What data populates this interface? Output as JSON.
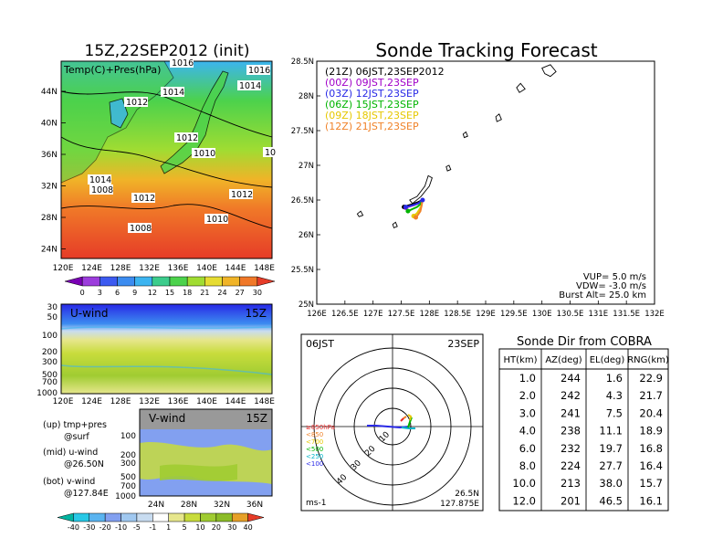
{
  "map_panel": {
    "title": "15Z,22SEP2012 (init)",
    "legend": "Temp(C)+Pres(hPa)",
    "lat_labels": [
      "44N",
      "40N",
      "36N",
      "32N",
      "28N",
      "24N"
    ],
    "lon_labels": [
      "120E",
      "124E",
      "128E",
      "132E",
      "136E",
      "140E",
      "144E",
      "148E"
    ],
    "pressure_labels": [
      "1016",
      "1016",
      "1014",
      "1014",
      "1012",
      "1012",
      "1010",
      "1008",
      "1012",
      "1012",
      "1010",
      "1008",
      "10",
      "1014"
    ],
    "colorbar_ticks": [
      "0",
      "3",
      "6",
      "9",
      "12",
      "15",
      "18",
      "21",
      "24",
      "27",
      "30"
    ],
    "colorbar_colors": [
      "#7a00b4",
      "#9c3cdc",
      "#3c5af0",
      "#3c8cf0",
      "#3cb4f0",
      "#3ccc8c",
      "#4cd24c",
      "#a0dc32",
      "#e6dc32",
      "#f0b428",
      "#f07828",
      "#e63c28"
    ]
  },
  "u_panel": {
    "label": "U-wind",
    "time": "15Z",
    "y_labels": [
      "30",
      "50",
      "100",
      "200",
      "300",
      "500",
      "700",
      "1000"
    ],
    "x_labels": [
      "120E",
      "124E",
      "128E",
      "132E",
      "136E",
      "140E",
      "144E",
      "148E"
    ]
  },
  "v_panel": {
    "label": "V-wind",
    "time": "15Z",
    "y_labels": [
      "100",
      "200",
      "300",
      "500",
      "700",
      "1000"
    ],
    "x_labels": [
      "24N",
      "28N",
      "32N",
      "36N"
    ]
  },
  "notes": {
    "up": "(up) tmp+pres",
    "up_sub": "@surf",
    "mid": "(mid) u-wind",
    "mid_sub": "@26.50N",
    "bot": "(bot) v-wind",
    "bot_sub": "@127.84E"
  },
  "wind_colorbar": {
    "ticks": [
      "-40",
      "-30",
      "-20",
      "-10",
      "-5",
      "-1",
      "1",
      "5",
      "10",
      "20",
      "30",
      "40"
    ],
    "colors": [
      "#00b4a0",
      "#28c8e6",
      "#5ab4f0",
      "#82a0f0",
      "#a0c8f0",
      "#c8dcf0",
      "#ffffff",
      "#e6e68c",
      "#c8dc3c",
      "#a0cc32",
      "#8cbc28",
      "#e6a028",
      "#e63c28"
    ]
  },
  "track_panel": {
    "title": "Sonde Tracking Forecast",
    "lat_labels": [
      "28.5N",
      "28N",
      "27.5N",
      "27N",
      "26.5N",
      "26N",
      "25.5N",
      "25N"
    ],
    "lon_labels": [
      "126E",
      "126.5E",
      "127E",
      "127.5E",
      "128E",
      "128.5E",
      "129E",
      "129.5E",
      "130E",
      "130.5E",
      "131E",
      "131.5E",
      "132E"
    ],
    "legend": [
      {
        "text": "(21Z)  06JST,23SEP2012",
        "color": "#000000"
      },
      {
        "text": "(00Z)  09JST,23SEP",
        "color": "#a000c8"
      },
      {
        "text": "(03Z)  12JST,23SEP",
        "color": "#2828e6"
      },
      {
        "text": "(06Z)  15JST,23SEP",
        "color": "#00b400"
      },
      {
        "text": "(09Z)  18JST,23SEP",
        "color": "#e6c800"
      },
      {
        "text": "(12Z)  21JST,23SEP",
        "color": "#f08228"
      }
    ],
    "params": [
      "VUP=  5.0  m/s",
      "VDW= -3.0  m/s",
      "Burst Alt=  25.0  km"
    ]
  },
  "polar_panel": {
    "time_left": "06JST",
    "time_right": "23SEP",
    "ring_labels": [
      "10",
      "20",
      "30",
      "40"
    ],
    "level_legend": [
      {
        "text": "≥850hPa",
        "color": "#e62828"
      },
      {
        "text": "<850",
        "color": "#f08228"
      },
      {
        "text": "<700",
        "color": "#e6c800"
      },
      {
        "text": "<500",
        "color": "#00b400"
      },
      {
        "text": "<250",
        "color": "#00b4c8"
      },
      {
        "text": "<100",
        "color": "#2828e6"
      }
    ],
    "units": "ms-1",
    "lat": "26.5N",
    "lon": "127.875E"
  },
  "sonde_table": {
    "title": "Sonde Dir from COBRA",
    "headers": [
      "HT(km)",
      "AZ(deg)",
      "EL(deg)",
      "RNG(km)"
    ],
    "rows": [
      [
        "1.0",
        "244",
        "1.6",
        "22.9"
      ],
      [
        "2.0",
        "242",
        "4.3",
        "21.7"
      ],
      [
        "3.0",
        "241",
        "7.5",
        "20.4"
      ],
      [
        "4.0",
        "238",
        "11.1",
        "18.9"
      ],
      [
        "6.0",
        "232",
        "19.7",
        "16.8"
      ],
      [
        "8.0",
        "224",
        "27.7",
        "16.4"
      ],
      [
        "10.0",
        "213",
        "38.0",
        "15.7"
      ],
      [
        "12.0",
        "201",
        "46.5",
        "16.1"
      ]
    ]
  },
  "chart_data": [
    {
      "type": "heatmap",
      "title": "15Z,22SEP2012 (init)",
      "description_label": "Temp(C)+Pres(hPa)",
      "x": [
        "120E",
        "124E",
        "128E",
        "132E",
        "136E",
        "140E",
        "144E",
        "148E"
      ],
      "y": [
        "44N",
        "40N",
        "36N",
        "32N",
        "28N",
        "24N"
      ],
      "colorbar": [
        "0",
        "3",
        "6",
        "9",
        "12",
        "15",
        "18",
        "21",
        "24",
        "27",
        "30"
      ],
      "contour_labels": [
        1016,
        1016,
        1014,
        1014,
        1012,
        1012,
        1010,
        1008,
        1012,
        1012,
        1010,
        1008,
        10,
        1014
      ]
    },
    {
      "type": "heatmap",
      "title": "U-wind",
      "x": [
        "120E",
        "124E",
        "128E",
        "132E",
        "136E",
        "140E",
        "144E",
        "148E"
      ],
      "y": [
        "30",
        "50",
        "100",
        "200",
        "300",
        "500",
        "700",
        "1000"
      ]
    },
    {
      "type": "heatmap",
      "title": "V-wind",
      "x": [
        "24N",
        "28N",
        "32N",
        "36N"
      ],
      "y": [
        "100",
        "200",
        "300",
        "500",
        "700",
        "1000"
      ]
    },
    {
      "type": "line",
      "title": "Sonde Tracking Forecast",
      "xlim": [
        126,
        132
      ],
      "ylim": [
        25,
        28.5
      ],
      "series": [
        {
          "name": "(21Z)  06JST,23SEP2012",
          "x": [
            127.88,
            127.8,
            127.7,
            127.62,
            127.55
          ],
          "y": [
            26.5,
            26.47,
            26.44,
            26.42,
            26.4
          ]
        },
        {
          "name": "(00Z)  09JST,23SEP",
          "x": [
            127.88,
            127.82,
            127.74,
            127.66,
            127.58
          ],
          "y": [
            26.5,
            26.46,
            26.43,
            26.41,
            26.39
          ]
        },
        {
          "name": "(03Z)  12JST,23SEP",
          "x": [
            127.88,
            127.8,
            127.72,
            127.64,
            127.58
          ],
          "y": [
            26.5,
            26.45,
            26.43,
            26.41,
            26.4
          ]
        },
        {
          "name": "(06Z)  15JST,23SEP",
          "x": [
            127.88,
            127.84,
            127.78,
            127.7,
            127.62
          ],
          "y": [
            26.5,
            26.44,
            26.4,
            26.37,
            26.34
          ]
        },
        {
          "name": "(09Z)  18JST,23SEP",
          "x": [
            127.88,
            127.86,
            127.82,
            127.78,
            127.72
          ],
          "y": [
            26.5,
            26.42,
            26.36,
            26.31,
            26.27
          ]
        },
        {
          "name": "(12Z)  21JST,23SEP",
          "x": [
            127.88,
            127.86,
            127.84,
            127.8,
            127.76
          ],
          "y": [
            26.5,
            26.41,
            26.34,
            26.29,
            26.25
          ]
        }
      ]
    },
    {
      "type": "table",
      "title": "Sonde Dir from COBRA",
      "columns": [
        "HT(km)",
        "AZ(deg)",
        "EL(deg)",
        "RNG(km)"
      ],
      "rows": [
        [
          1.0,
          244,
          1.6,
          22.9
        ],
        [
          2.0,
          242,
          4.3,
          21.7
        ],
        [
          3.0,
          241,
          7.5,
          20.4
        ],
        [
          4.0,
          238,
          11.1,
          18.9
        ],
        [
          6.0,
          232,
          19.7,
          16.8
        ],
        [
          8.0,
          224,
          27.7,
          16.4
        ],
        [
          10.0,
          213,
          38.0,
          15.7
        ],
        [
          12.0,
          201,
          46.5,
          16.1
        ]
      ]
    }
  ]
}
